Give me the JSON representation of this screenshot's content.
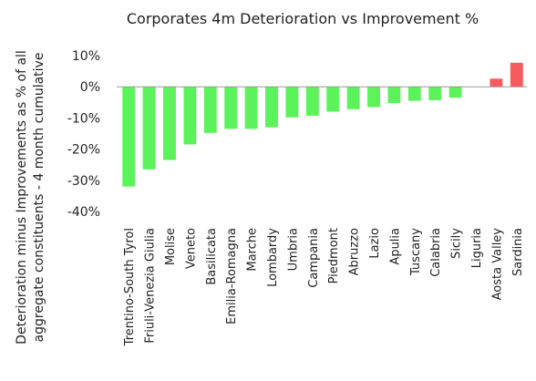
{
  "chart_data": {
    "type": "bar",
    "title": "Corporates 4m Deterioration vs Improvement %",
    "xlabel": "",
    "ylabel_lines": [
      "Deterioration minus Improvements as % of all",
      "aggregate constituents - 4 month cumulative"
    ],
    "ylim": [
      -40,
      10
    ],
    "yticks": [
      10,
      0,
      -10,
      -20,
      -30,
      -40
    ],
    "ytick_suffix": "%",
    "grid": false,
    "legend": "none",
    "categories": [
      "Trentino-South Tyrol",
      "Friuli-Venezia Giulia",
      "Molise",
      "Veneto",
      "Basilicata",
      "Emilia-Romagna",
      "Marche",
      "Lombardy",
      "Umbria",
      "Campania",
      "Piedmont",
      "Abruzzo",
      "Lazio",
      "Apulia",
      "Tuscany",
      "Calabria",
      "Sicily",
      "Liguria",
      "Aosta Valley",
      "Sardinia"
    ],
    "values": [
      -32,
      -26.5,
      -23.5,
      -18.5,
      -14.8,
      -13.5,
      -13.5,
      -13,
      -9.8,
      -9.3,
      -8,
      -7.2,
      -6.5,
      -5.2,
      -4.5,
      -4.3,
      -3.5,
      0,
      2.6,
      7.7
    ],
    "colors": {
      "negative": "#5cf25c",
      "positive": "#f75a5f",
      "axis": "#999999"
    }
  }
}
